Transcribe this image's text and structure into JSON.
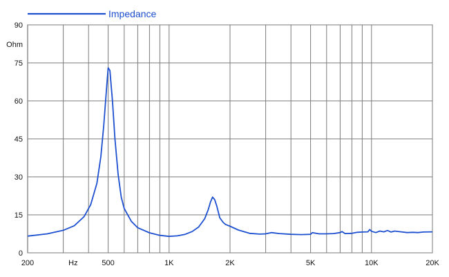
{
  "chart_data": {
    "type": "line",
    "title": "",
    "xlabel": "Hz",
    "ylabel": "Ohm",
    "x_scale": "log",
    "xlim": [
      200,
      20000
    ],
    "ylim": [
      0,
      90
    ],
    "y_ticks": [
      0,
      15,
      30,
      45,
      60,
      75,
      90
    ],
    "y_tick_labels": [
      "0",
      "15",
      "30",
      "45",
      "60",
      "75",
      "90"
    ],
    "x_tick_labels": [
      {
        "x": 200,
        "label": "200"
      },
      {
        "x": 500,
        "label": "500"
      },
      {
        "x": 1000,
        "label": "1K"
      },
      {
        "x": 2000,
        "label": "2K"
      },
      {
        "x": 5000,
        "label": "5K"
      },
      {
        "x": 10000,
        "label": "10K"
      },
      {
        "x": 20000,
        "label": "20K"
      }
    ],
    "x_gridlines": [
      300,
      400,
      500,
      600,
      700,
      800,
      900,
      1000,
      2000,
      3000,
      4000,
      5000,
      6000,
      7000,
      8000,
      9000,
      10000,
      20000
    ],
    "grid": true,
    "legend_position": "top-left",
    "series": [
      {
        "name": "Impedance",
        "color": "#1c4fd0",
        "x": [
          200,
          250,
          300,
          340,
          380,
          410,
          440,
          460,
          475,
          490,
          500,
          510,
          525,
          540,
          560,
          580,
          600,
          650,
          700,
          800,
          900,
          1000,
          1100,
          1200,
          1300,
          1400,
          1500,
          1560,
          1600,
          1640,
          1680,
          1720,
          1780,
          1850,
          1900,
          2000,
          2200,
          2500,
          2800,
          3000,
          3200,
          3500,
          4000,
          4500,
          5000,
          5100,
          5500,
          6000,
          6500,
          7000,
          7150,
          7400,
          8000,
          8500,
          9000,
          9600,
          9800,
          10000,
          10500,
          11000,
          11500,
          12000,
          12500,
          13000,
          14000,
          15000,
          16000,
          17000,
          18000,
          20000
        ],
        "values": [
          6.6,
          7.5,
          8.9,
          10.7,
          14.3,
          19.0,
          27.5,
          38.0,
          50.0,
          64.0,
          73.0,
          72.0,
          60.0,
          45.0,
          31.0,
          22.0,
          17.5,
          12.5,
          9.9,
          7.9,
          6.9,
          6.5,
          6.7,
          7.3,
          8.4,
          10.2,
          13.5,
          17.0,
          20.0,
          22.0,
          21.0,
          18.5,
          13.8,
          12.0,
          11.2,
          10.5,
          9.0,
          7.7,
          7.4,
          7.5,
          8.0,
          7.6,
          7.3,
          7.2,
          7.3,
          8.0,
          7.5,
          7.5,
          7.6,
          8.0,
          8.4,
          7.6,
          7.7,
          8.1,
          8.2,
          8.3,
          9.2,
          8.5,
          8.0,
          8.6,
          8.3,
          8.8,
          8.2,
          8.6,
          8.3,
          8.0,
          8.1,
          8.0,
          8.2,
          8.3
        ]
      }
    ]
  }
}
